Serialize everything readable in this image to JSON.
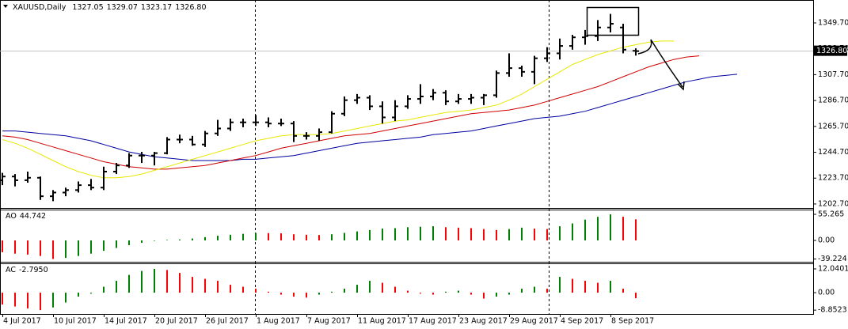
{
  "chart_data": {
    "type": "ohlc",
    "title": "XAUUSD,Daily",
    "categories": [
      "4 Jul 2017",
      null,
      null,
      null,
      "10 Jul 2017",
      null,
      null,
      null,
      "14 Jul 2017",
      null,
      null,
      null,
      "20 Jul 2017",
      null,
      null,
      null,
      "26 Jul 2017",
      null,
      null,
      null,
      "1 Aug 2017",
      null,
      null,
      null,
      "7 Aug 2017",
      null,
      null,
      null,
      "11 Aug 2017",
      null,
      null,
      null,
      "17 Aug 2017",
      null,
      null,
      null,
      "23 Aug 2017",
      null,
      null,
      null,
      "29 Aug 2017",
      null,
      null,
      null,
      "4 Sep 2017",
      null,
      null,
      null,
      "8 Sep 2017",
      null,
      null,
      null,
      null,
      null,
      null,
      null,
      null,
      null,
      null
    ],
    "open": [
      1222,
      1225,
      1222,
      1224,
      1209,
      1212,
      1214,
      1218,
      1216,
      1229,
      1234,
      1242,
      1242,
      1244,
      1255,
      1255,
      1251,
      1260,
      1264,
      1269,
      1269,
      1269,
      1268,
      1268,
      1258,
      1258,
      1261,
      1276,
      1287,
      1289,
      1282,
      1273,
      1282,
      1288,
      1290,
      1293,
      1286,
      1288,
      1289,
      1291,
      1309,
      1313,
      1310,
      1321,
      1325,
      1331,
      1338,
      1339,
      1346,
      1346,
      1327.05,
      null,
      null,
      null,
      null,
      null,
      null,
      null,
      null
    ],
    "high": [
      1228,
      1227,
      1229,
      1225,
      1214,
      1216,
      1221,
      1223,
      1233,
      1236,
      1244,
      1245,
      1245,
      1257,
      1259,
      1258,
      1262,
      1271,
      1272,
      1272,
      1275,
      1273,
      1272,
      1270,
      1261,
      1264,
      1278,
      1290,
      1292,
      1291,
      1286,
      1287,
      1291,
      1300,
      1296,
      1295,
      1292,
      1292,
      1292,
      1311,
      1325,
      1315,
      1323,
      1330,
      1337,
      1340,
      1344,
      1352,
      1357,
      1349,
      1329.07,
      null,
      null,
      null,
      null,
      null,
      null,
      null,
      null
    ],
    "low": [
      1218,
      1217,
      1220,
      1206,
      1205,
      1209,
      1212,
      1214,
      1214,
      1227,
      1232,
      1236,
      1234,
      1243,
      1252,
      1250,
      1249,
      1258,
      1262,
      1265,
      1266,
      1265,
      1266,
      1253,
      1255,
      1254,
      1260,
      1274,
      1284,
      1279,
      1268,
      1270,
      1280,
      1284,
      1287,
      1283,
      1284,
      1284,
      1283,
      1289,
      1306,
      1306,
      1300,
      1318,
      1320,
      1328,
      1332,
      1335,
      1342,
      1325,
      1323.17,
      null,
      null,
      null,
      null,
      null,
      null,
      null,
      null
    ],
    "close": [
      1225,
      1222,
      1224,
      1209,
      1212,
      1214,
      1218,
      1216,
      1229,
      1234,
      1242,
      1242,
      1244,
      1255,
      1255,
      1251,
      1260,
      1264,
      1269,
      1269,
      1269,
      1268,
      1268,
      1258,
      1258,
      1261,
      1276,
      1287,
      1289,
      1282,
      1273,
      1282,
      1288,
      1290,
      1293,
      1286,
      1288,
      1289,
      1291,
      1309,
      1313,
      1310,
      1321,
      1325,
      1331,
      1338,
      1339,
      1346,
      1349,
      1328,
      1326.8,
      null,
      null,
      null,
      null,
      null,
      null,
      null,
      null
    ],
    "last_price": {
      "value": 1326.8,
      "label": "1326.80"
    },
    "bar_color": "#000000",
    "ylim": [
      1200.1,
      1368.3
    ],
    "yticks": [
      {
        "value": 1349.7,
        "label": "1349.70"
      },
      {
        "value": 1328.7,
        "label": "1328.70"
      },
      {
        "value": 1307.7,
        "label": "1307.70"
      },
      {
        "value": 1286.7,
        "label": "1286.70"
      },
      {
        "value": 1265.7,
        "label": "1265.70"
      },
      {
        "value": 1244.7,
        "label": "1244.70"
      },
      {
        "value": 1223.7,
        "label": "1223.70"
      },
      {
        "value": 1202.7,
        "label": "1202.70"
      }
    ],
    "lines": [
      {
        "color": "#0000a0",
        "values": [
          1262,
          1262,
          1261,
          1260,
          1259,
          1258,
          1256,
          1254,
          1251,
          1248,
          1245,
          1243,
          1241,
          1240,
          1239,
          1238,
          1238,
          1238,
          1238,
          1239,
          1239,
          1240,
          1241,
          1242,
          1244,
          1246,
          1248,
          1250,
          1252,
          1253,
          1254,
          1255,
          1256,
          1257,
          1259,
          1260,
          1261,
          1262,
          1264,
          1266,
          1268,
          1270,
          1272,
          1273,
          1274,
          1276,
          1278,
          1281,
          1284,
          1287,
          1290,
          1293,
          1296,
          1299,
          1302,
          1304,
          1306,
          1307,
          1308
        ]
      },
      {
        "color": "#d00000",
        "values": [
          1258,
          1257,
          1255,
          1252,
          1249,
          1246,
          1243,
          1240,
          1237,
          1235,
          1233,
          1232,
          1231,
          1231,
          1232,
          1233,
          1234,
          1236,
          1238,
          1240,
          1242,
          1245,
          1248,
          1250,
          1252,
          1254,
          1256,
          1258,
          1259,
          1260,
          1262,
          1264,
          1266,
          1268,
          1270,
          1272,
          1274,
          1276,
          1277,
          1278,
          1279,
          1281,
          1283,
          1286,
          1289,
          1292,
          1295,
          1298,
          1302,
          1306,
          1310,
          1314,
          1317,
          1320,
          1322,
          1323,
          null,
          null,
          null
        ]
      },
      {
        "color": "#e8e800",
        "values": [
          1255,
          1252,
          1248,
          1243,
          1238,
          1233,
          1229,
          1226,
          1224,
          1224,
          1225,
          1227,
          1230,
          1233,
          1236,
          1239,
          1242,
          1245,
          1248,
          1251,
          1254,
          1256,
          1258,
          1259,
          1259,
          1259,
          1260,
          1262,
          1264,
          1266,
          1268,
          1270,
          1271,
          1273,
          1275,
          1277,
          1278,
          1279,
          1281,
          1283,
          1287,
          1292,
          1298,
          1304,
          1310,
          1316,
          1320,
          1324,
          1327,
          1330,
          1332,
          1334,
          1335,
          1335,
          null,
          null,
          null,
          null,
          null
        ]
      }
    ],
    "panes": [
      {
        "name": "AO",
        "type": "histogram",
        "last_value_label": "44.742",
        "up_color": "#008000",
        "down_color": "#ff0000",
        "values": [
          -25,
          -28,
          -30,
          -33,
          -39.224,
          -37,
          -33,
          -28,
          -22,
          -16,
          -10,
          -5,
          -1,
          1,
          2,
          4,
          7,
          10,
          12,
          14,
          16,
          15.5,
          15,
          13,
          12,
          11.5,
          13,
          16,
          19,
          22,
          25,
          26,
          28,
          29,
          30,
          28,
          27,
          26,
          24,
          22,
          24,
          27,
          25,
          24,
          30,
          36,
          44,
          50,
          55.265,
          50,
          44.742
        ],
        "ylim": [
          -45.2,
          65.3
        ],
        "yticks": [
          55.265,
          {
            "value": 0,
            "label": "0.00"
          },
          -39.224
        ]
      },
      {
        "name": "AC",
        "type": "histogram",
        "last_value_label": "-2.7950",
        "up_color": "#008000",
        "down_color": "#ff0000",
        "values": [
          -6,
          -7,
          -8,
          -8.8523,
          -7.5,
          -5,
          -2,
          -0.5,
          3,
          6,
          9,
          11,
          12.0401,
          11.5,
          10,
          8,
          7,
          6,
          4,
          3,
          2,
          0.5,
          -1,
          -2,
          -2.5,
          -1,
          0.5,
          2,
          4,
          6,
          5,
          3,
          1,
          -0.5,
          -1,
          0.5,
          1,
          -1,
          -3,
          -2,
          -1,
          2,
          3,
          2,
          8,
          7,
          6,
          5,
          6,
          2,
          -2.795
        ],
        "ylim": [
          -10.8,
          14.85
        ],
        "yticks": [
          12.0401,
          {
            "value": 0,
            "label": "0.00"
          },
          -8.8523
        ]
      }
    ]
  }
}
